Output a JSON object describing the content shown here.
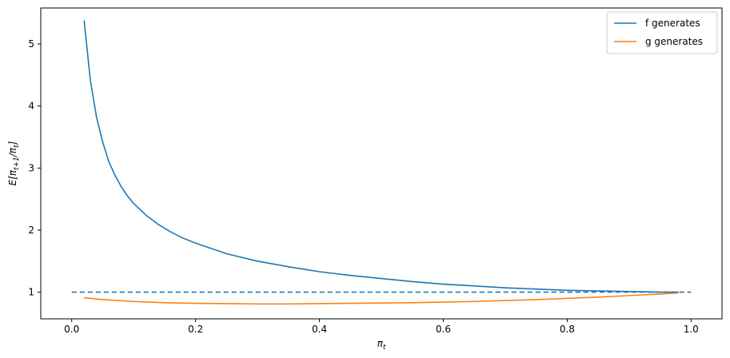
{
  "chart_data": {
    "type": "line",
    "xlabel_base": "π",
    "xlabel_sub": "t",
    "ylabel_prefix": "E[π",
    "ylabel_sub1": "t+1",
    "ylabel_mid": "/π",
    "ylabel_sub2": "t",
    "ylabel_suffix": "]",
    "xlim": [
      -0.05,
      1.05
    ],
    "ylim": [
      0.57,
      5.58
    ],
    "xticks": [
      0.0,
      0.2,
      0.4,
      0.6,
      0.8,
      1.0
    ],
    "xtick_labels": [
      "0.0",
      "0.2",
      "0.4",
      "0.6",
      "0.8",
      "1.0"
    ],
    "yticks": [
      1,
      2,
      3,
      4,
      5
    ],
    "ytick_labels": [
      "1",
      "2",
      "3",
      "4",
      "5"
    ],
    "grid": false,
    "legend_position": "top-right",
    "series": [
      {
        "name": "f generates",
        "color": "#1f77b4",
        "style": "solid",
        "x": [
          0.02,
          0.03,
          0.04,
          0.05,
          0.06,
          0.07,
          0.08,
          0.09,
          0.1,
          0.12,
          0.14,
          0.16,
          0.18,
          0.2,
          0.25,
          0.3,
          0.35,
          0.4,
          0.45,
          0.5,
          0.55,
          0.6,
          0.65,
          0.7,
          0.75,
          0.8,
          0.85,
          0.9,
          0.95,
          0.98
        ],
        "y": [
          5.38,
          4.42,
          3.82,
          3.42,
          3.1,
          2.88,
          2.7,
          2.55,
          2.43,
          2.24,
          2.09,
          1.97,
          1.87,
          1.79,
          1.62,
          1.5,
          1.41,
          1.33,
          1.27,
          1.22,
          1.17,
          1.13,
          1.1,
          1.07,
          1.05,
          1.03,
          1.02,
          1.01,
          1.0,
          1.0
        ]
      },
      {
        "name": "g generates",
        "color": "#ff7f0e",
        "style": "solid",
        "x": [
          0.02,
          0.05,
          0.1,
          0.15,
          0.2,
          0.25,
          0.3,
          0.35,
          0.4,
          0.45,
          0.5,
          0.55,
          0.6,
          0.65,
          0.7,
          0.75,
          0.8,
          0.85,
          0.9,
          0.95,
          0.98
        ],
        "y": [
          0.91,
          0.88,
          0.85,
          0.83,
          0.82,
          0.815,
          0.81,
          0.81,
          0.815,
          0.82,
          0.825,
          0.83,
          0.84,
          0.85,
          0.865,
          0.88,
          0.9,
          0.92,
          0.945,
          0.97,
          0.99
        ]
      },
      {
        "color": "#1f77b4",
        "style": "dashed",
        "x": [
          0.0,
          1.0
        ],
        "y": [
          1.0,
          1.0
        ]
      }
    ]
  }
}
